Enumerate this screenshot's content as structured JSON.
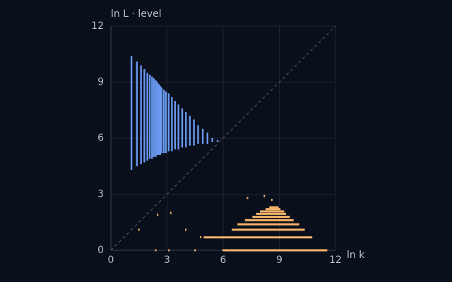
{
  "chart_data": {
    "type": "scatter",
    "title": "ln L · level",
    "x_label": "ln k",
    "xlim": [
      0,
      12
    ],
    "ylim": [
      0,
      12
    ],
    "xticks": [
      0,
      3,
      6,
      9,
      12
    ],
    "yticks": [
      0,
      3,
      6,
      9,
      12
    ],
    "grid": true,
    "diagonal": true,
    "series": [
      {
        "color": "#6a98ef",
        "x": [
          1.1,
          1.39,
          1.61,
          1.79,
          1.95,
          2.08,
          2.2,
          2.3,
          2.4,
          2.48,
          2.56,
          2.64,
          2.71,
          2.83,
          2.94,
          3.09,
          3.26,
          3.43,
          3.61,
          3.81,
          4.01,
          4.22,
          4.44,
          4.66,
          4.91,
          5.16,
          5.42,
          5.7
        ],
        "y_low": [
          4.3,
          4.5,
          4.6,
          4.7,
          4.8,
          4.9,
          4.9,
          5.0,
          5.0,
          5.1,
          5.1,
          5.1,
          5.2,
          5.2,
          5.2,
          5.3,
          5.3,
          5.4,
          5.4,
          5.5,
          5.5,
          5.6,
          5.6,
          5.7,
          5.7,
          5.7,
          5.8,
          5.8
        ],
        "y_high": [
          10.4,
          10.1,
          9.9,
          9.7,
          9.5,
          9.4,
          9.3,
          9.2,
          9.1,
          9.0,
          8.9,
          8.8,
          8.7,
          8.6,
          8.5,
          8.4,
          8.2,
          8.0,
          7.8,
          7.6,
          7.4,
          7.2,
          7.0,
          6.7,
          6.5,
          6.3,
          6.0,
          5.9
        ]
      },
      {
        "color": "#f4b46a",
        "y": [
          0,
          0.69,
          1.1,
          1.39,
          1.61,
          1.79,
          1.95,
          2.08,
          2.2,
          2.3,
          1.9,
          2.0,
          1.1,
          1.1,
          0.7,
          2.9,
          2.8,
          2.7,
          0,
          0,
          0
        ],
        "x_low": [
          6.0,
          5.0,
          6.5,
          6.8,
          7.2,
          7.6,
          7.8,
          8.0,
          8.3,
          8.5,
          2.5,
          3.2,
          4.0,
          1.5,
          4.8,
          8.2,
          7.3,
          8.6,
          3.1,
          2.4,
          4.5
        ],
        "x_high": [
          11.6,
          10.8,
          10.4,
          10.1,
          9.8,
          9.6,
          9.4,
          9.3,
          9.1,
          9.0,
          2.5,
          3.2,
          4.0,
          1.5,
          4.8,
          8.2,
          7.3,
          8.6,
          3.1,
          2.4,
          4.5
        ]
      }
    ]
  }
}
